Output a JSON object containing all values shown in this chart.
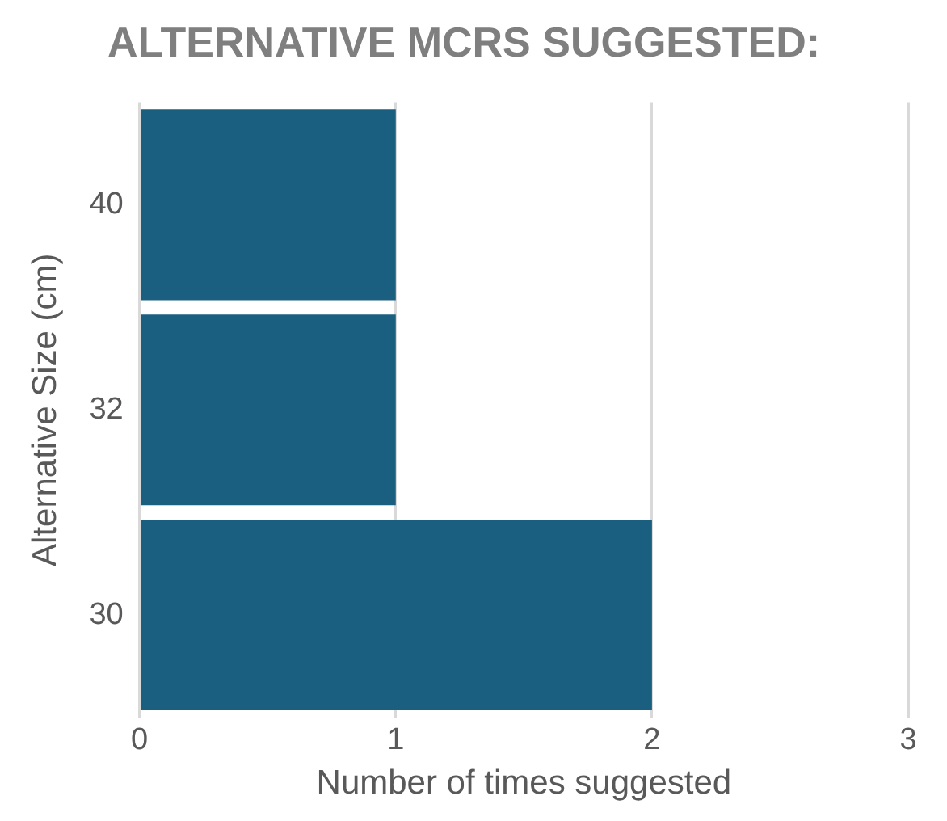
{
  "chart_data": {
    "type": "bar",
    "orientation": "horizontal",
    "title": "ALTERNATIVE MCRS SUGGESTED:",
    "xlabel": "Number of times suggested",
    "ylabel": "Alternative Size (cm)",
    "categories": [
      "40",
      "32",
      "30"
    ],
    "values": [
      1,
      1,
      2
    ],
    "color": "#1a5e80",
    "xlim": [
      0,
      3
    ],
    "xticks": [
      0,
      1,
      2,
      3
    ],
    "grid": "x",
    "legend": false
  }
}
